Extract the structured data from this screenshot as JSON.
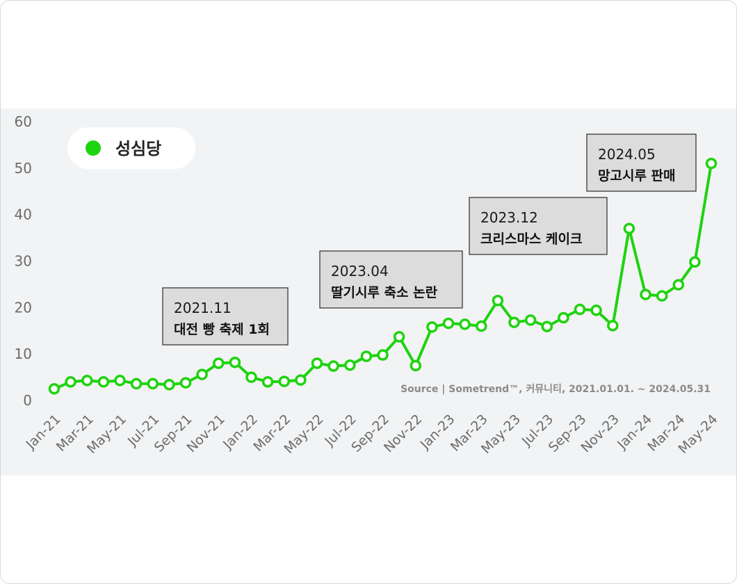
{
  "chart_data": {
    "type": "line",
    "series": [
      {
        "name": "성심당",
        "color": "#1ed30f",
        "values": [
          2.5,
          4,
          4.3,
          4,
          4.3,
          3.6,
          3.6,
          3.4,
          3.8,
          5.6,
          8,
          8.2,
          5,
          4,
          4.1,
          4.4,
          8,
          7.4,
          7.6,
          9.5,
          9.8,
          13.7,
          7.5,
          15.8,
          16.6,
          16.4,
          16,
          21.5,
          16.8,
          17.3,
          15.9,
          17.8,
          19.6,
          19.4,
          16.1,
          37,
          22.8,
          22.5,
          24.9,
          29.8,
          51
        ]
      }
    ],
    "x_labels": [
      "Jan-21",
      "Mar-21",
      "May-21",
      "Jul-21",
      "Sep-21",
      "Nov-21",
      "Jan-22",
      "Mar-22",
      "May-22",
      "Jul-22",
      "Sep-22",
      "Nov-22",
      "Jan-23",
      "Mar-23",
      "May-23",
      "Jul-23",
      "Sep-23",
      "Nov-23",
      "Jan-24",
      "Mar-24",
      "May-24"
    ],
    "ylim": [
      0,
      60
    ],
    "yticks": [
      0,
      10,
      20,
      30,
      40,
      50,
      60
    ],
    "legend": {
      "label": "성심당",
      "position": "top-left",
      "color": "#1ed30f"
    },
    "annotations": [
      {
        "date": "2021.11",
        "text": "대전 빵 축제 1회"
      },
      {
        "date": "2023.04",
        "text": "딸기시루 축소 논란"
      },
      {
        "date": "2023.12",
        "text": "크리스마스 케이크"
      },
      {
        "date": "2024.05",
        "text": "망고시루 판매"
      }
    ],
    "source": "Source | Sometrend™, 커뮤니티, 2021.01.01. ~ 2024.05.31",
    "grid": false,
    "background": "#f2f3f4"
  }
}
